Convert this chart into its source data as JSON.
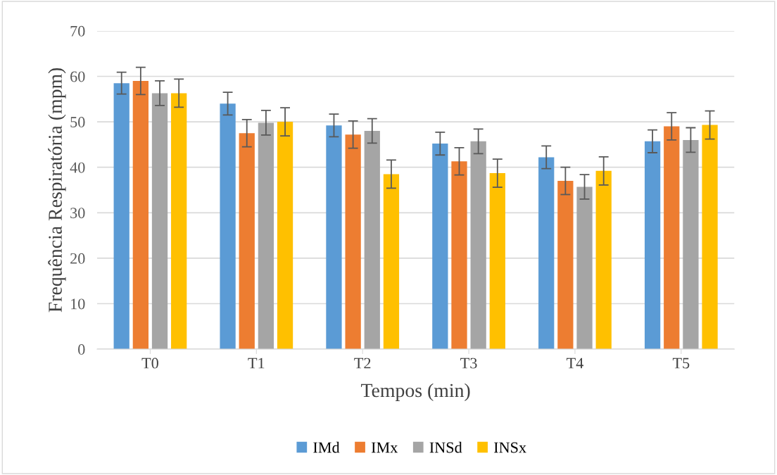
{
  "chart_data": {
    "type": "bar",
    "xlabel": "Tempos (min)",
    "ylabel": "Frequência Respiratória (mpm)",
    "categories": [
      "T0",
      "T1",
      "T2",
      "T3",
      "T4",
      "T5"
    ],
    "series": [
      {
        "name": "IMd",
        "color": "#5b9bd5",
        "values": [
          58.5,
          54,
          49.2,
          45.2,
          42.2,
          45.7
        ],
        "errors": [
          2.4,
          2.5,
          2.5,
          2.5,
          2.5,
          2.5
        ]
      },
      {
        "name": "IMx",
        "color": "#ed7d31",
        "values": [
          59,
          47.5,
          47.2,
          41.3,
          37,
          49
        ],
        "errors": [
          3,
          3,
          3,
          3,
          3,
          3
        ]
      },
      {
        "name": "INSd",
        "color": "#a5a5a5",
        "values": [
          56.3,
          49.8,
          48,
          45.7,
          35.7,
          46
        ],
        "errors": [
          2.7,
          2.7,
          2.7,
          2.7,
          2.7,
          2.7
        ]
      },
      {
        "name": "INSx",
        "color": "#ffc000",
        "values": [
          56.3,
          50,
          38.5,
          38.7,
          39.2,
          49.3
        ],
        "errors": [
          3.1,
          3.1,
          3.1,
          3.1,
          3.1,
          3.1
        ]
      }
    ],
    "ylim": [
      0,
      70
    ],
    "yticks": [
      0,
      10,
      20,
      30,
      40,
      50,
      60,
      70
    ],
    "grid": "y",
    "legend": "bottom"
  }
}
